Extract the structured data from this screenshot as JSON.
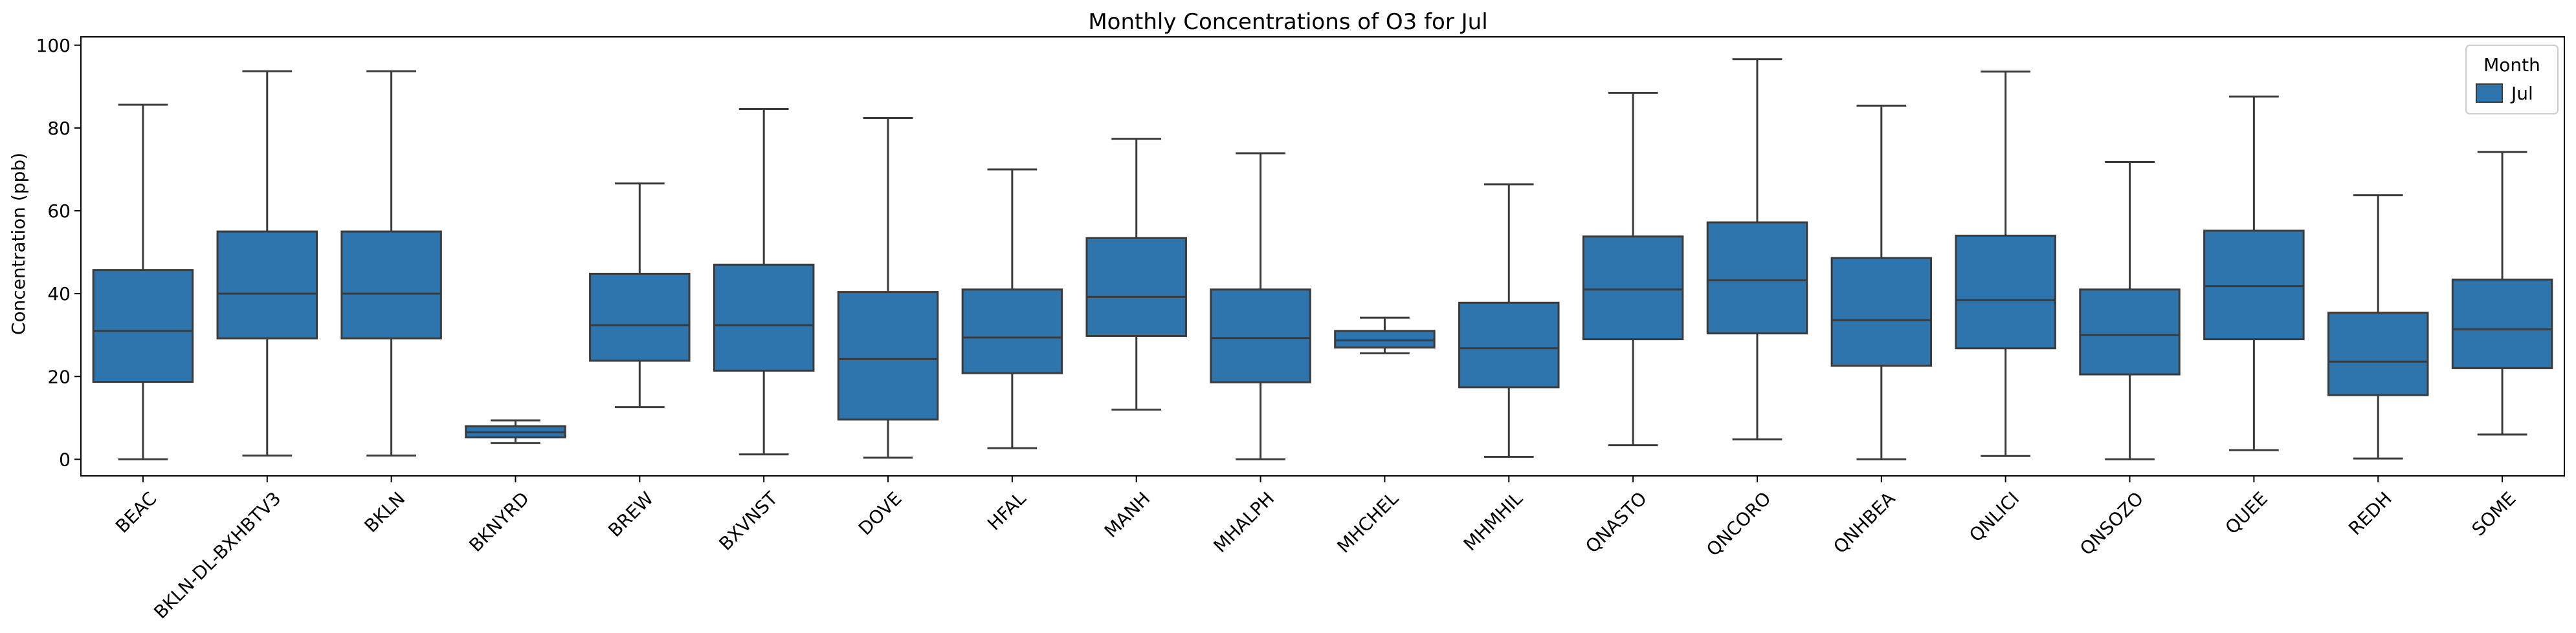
{
  "chart_data": {
    "type": "box",
    "title": "Monthly Concentrations of O3 for Jul",
    "xlabel": "",
    "ylabel": "Concentration (ppb)",
    "ylim": [
      -4,
      102
    ],
    "yticks": [
      0,
      20,
      40,
      60,
      80,
      100
    ],
    "grid": false,
    "legend": {
      "title": "Month",
      "placement": "top-right",
      "entries": [
        {
          "label": "Jul",
          "color": "#2e74ad"
        }
      ]
    },
    "box_color": "#2e74ad",
    "line_color": "#3b3b3b",
    "categories": [
      "BEAC",
      "BKLN-DL-BXHBTV3",
      "BKLN",
      "BKNYRD",
      "BREW",
      "BXVNST",
      "DOVE",
      "HFAL",
      "MANH",
      "MHALPH",
      "MHCHEL",
      "MHMHIL",
      "QNASTO",
      "QNCORO",
      "QNHBEA",
      "QNLICI",
      "QNSOZO",
      "QUEE",
      "REDH",
      "SOME"
    ],
    "series": [
      {
        "name": "Jul",
        "boxes": [
          {
            "whislo": 0,
            "q1": 18.7,
            "med": 31,
            "q3": 45.7,
            "whishi": 85.6
          },
          {
            "whislo": 0.9,
            "q1": 29.2,
            "med": 40,
            "q3": 55,
            "whishi": 93.7
          },
          {
            "whislo": 0.9,
            "q1": 29.2,
            "med": 40,
            "q3": 55,
            "whishi": 93.7
          },
          {
            "whislo": 3.9,
            "q1": 5.3,
            "med": 6.5,
            "q3": 8,
            "whishi": 9.4
          },
          {
            "whislo": 12.6,
            "q1": 23.8,
            "med": 32.4,
            "q3": 44.8,
            "whishi": 66.6
          },
          {
            "whislo": 1.2,
            "q1": 21.4,
            "med": 32.4,
            "q3": 47,
            "whishi": 84.6
          },
          {
            "whislo": 0.4,
            "q1": 9.6,
            "med": 24.2,
            "q3": 40.4,
            "whishi": 82.4
          },
          {
            "whislo": 2.7,
            "q1": 20.8,
            "med": 29.4,
            "q3": 41,
            "whishi": 70
          },
          {
            "whislo": 12,
            "q1": 29.8,
            "med": 39.2,
            "q3": 53.4,
            "whishi": 77.4
          },
          {
            "whislo": 0,
            "q1": 18.6,
            "med": 29.3,
            "q3": 41,
            "whishi": 73.9
          },
          {
            "whislo": 25.6,
            "q1": 27,
            "med": 28.7,
            "q3": 31,
            "whishi": 34.2
          },
          {
            "whislo": 0.6,
            "q1": 17.4,
            "med": 26.8,
            "q3": 37.8,
            "whishi": 66.4
          },
          {
            "whislo": 3.4,
            "q1": 29,
            "med": 41,
            "q3": 53.8,
            "whishi": 88.5
          },
          {
            "whislo": 4.8,
            "q1": 30.4,
            "med": 43.2,
            "q3": 57.2,
            "whishi": 96.6
          },
          {
            "whislo": 0,
            "q1": 22.6,
            "med": 33.6,
            "q3": 48.6,
            "whishi": 85.4
          },
          {
            "whislo": 0.8,
            "q1": 26.8,
            "med": 38.4,
            "q3": 54,
            "whishi": 93.6
          },
          {
            "whislo": 0,
            "q1": 20.5,
            "med": 30,
            "q3": 41,
            "whishi": 71.8
          },
          {
            "whislo": 2.2,
            "q1": 29,
            "med": 41.8,
            "q3": 55.2,
            "whishi": 87.6
          },
          {
            "whislo": 0.2,
            "q1": 15.5,
            "med": 23.6,
            "q3": 35.4,
            "whishi": 63.8
          },
          {
            "whislo": 6,
            "q1": 22,
            "med": 31.4,
            "q3": 43.4,
            "whishi": 74.2
          }
        ]
      }
    ]
  }
}
